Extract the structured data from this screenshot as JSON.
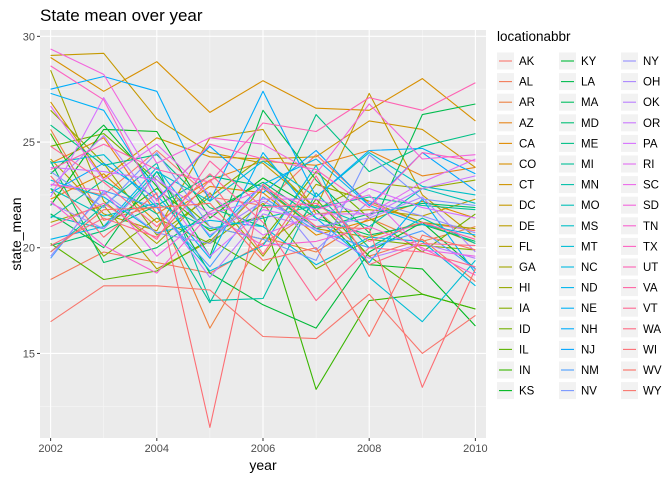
{
  "chart_data": {
    "type": "line",
    "title": "State mean over year",
    "xlabel": "year",
    "ylabel": "state_mean",
    "xlim": [
      2001.8,
      2010.2
    ],
    "ylim": [
      11.0,
      30.3
    ],
    "x_ticks": [
      2002,
      2004,
      2006,
      2008,
      2010
    ],
    "y_ticks": [
      15,
      20,
      25,
      30
    ],
    "grid": true,
    "legend_title": "locationabbr",
    "legend_position": "right",
    "x": [
      2002,
      2003,
      2004,
      2005,
      2006,
      2007,
      2008,
      2009,
      2010
    ],
    "series": [
      {
        "name": "AK",
        "color": "#F8766D",
        "values": [
          23.0,
          22.5,
          24.6,
          22.4,
          22.0,
          24.4,
          22.1,
          21.2,
          20.8
        ]
      },
      {
        "name": "AL",
        "color": "#F37B59",
        "values": [
          18.5,
          19.8,
          19.3,
          18.8,
          20.2,
          21.8,
          19.6,
          20.4,
          18.4
        ]
      },
      {
        "name": "AR",
        "color": "#ED8141",
        "values": [
          25.6,
          21.3,
          22.0,
          16.2,
          20.5,
          19.8,
          21.4,
          20.3,
          21.0
        ]
      },
      {
        "name": "AZ",
        "color": "#E7861B",
        "values": [
          24.0,
          25.2,
          21.6,
          23.2,
          24.1,
          23.9,
          24.6,
          23.4,
          23.8
        ]
      },
      {
        "name": "CA",
        "color": "#E08B00",
        "values": [
          22.3,
          23.5,
          21.2,
          22.9,
          22.6,
          20.6,
          21.3,
          22.2,
          21.4
        ]
      },
      {
        "name": "CO",
        "color": "#D89000",
        "values": [
          29.0,
          27.4,
          28.8,
          26.4,
          27.9,
          26.6,
          26.5,
          28.0,
          26.0
        ]
      },
      {
        "name": "CT",
        "color": "#CF9400",
        "values": [
          26.9,
          23.3,
          25.2,
          24.3,
          24.2,
          24.3,
          26.0,
          25.6,
          23.8
        ]
      },
      {
        "name": "DC",
        "color": "#C59900",
        "values": [
          29.1,
          29.2,
          26.1,
          24.5,
          24.0,
          21.9,
          27.3,
          22.5,
          20.5
        ]
      },
      {
        "name": "DE",
        "color": "#BB9D00",
        "values": [
          24.2,
          21.6,
          20.8,
          25.2,
          25.6,
          21.6,
          21.8,
          21.5,
          22.3
        ]
      },
      {
        "name": "FL",
        "color": "#AFA100",
        "values": [
          21.2,
          22.0,
          19.0,
          20.3,
          22.8,
          20.9,
          20.5,
          21.2,
          20.9
        ]
      },
      {
        "name": "GA",
        "color": "#A3A500",
        "values": [
          28.4,
          22.2,
          20.2,
          22.6,
          19.6,
          23.0,
          22.2,
          21.2,
          20.2
        ]
      },
      {
        "name": "HI",
        "color": "#95A900",
        "values": [
          26.5,
          24.0,
          20.6,
          22.4,
          24.3,
          21.8,
          23.1,
          22.8,
          23.2
        ]
      },
      {
        "name": "IA",
        "color": "#85AD00",
        "values": [
          22.8,
          19.6,
          21.4,
          20.2,
          22.1,
          19.0,
          20.4,
          20.1,
          19.9
        ]
      },
      {
        "name": "ID",
        "color": "#72B000",
        "values": [
          24.8,
          25.4,
          23.2,
          21.0,
          20.4,
          23.6,
          21.4,
          19.8,
          21.6
        ]
      },
      {
        "name": "IL",
        "color": "#5BB300",
        "values": [
          20.2,
          18.5,
          18.9,
          20.4,
          18.9,
          22.3,
          19.6,
          17.8,
          17.1
        ]
      },
      {
        "name": "IN",
        "color": "#39B600",
        "values": [
          25.4,
          21.0,
          22.8,
          20.8,
          21.5,
          13.3,
          17.5,
          17.8,
          17.1
        ]
      },
      {
        "name": "KS",
        "color": "#00B81F",
        "values": [
          22.0,
          25.6,
          25.5,
          21.4,
          23.3,
          21.8,
          19.2,
          19.0,
          16.3
        ]
      },
      {
        "name": "KY",
        "color": "#00BA38",
        "values": [
          23.5,
          25.8,
          22.9,
          18.8,
          17.3,
          16.2,
          19.8,
          21.2,
          19.0
        ]
      },
      {
        "name": "LA",
        "color": "#00BC4D",
        "values": [
          21.6,
          20.0,
          23.6,
          19.6,
          26.5,
          23.2,
          20.7,
          26.3,
          26.8
        ]
      },
      {
        "name": "MA",
        "color": "#00BE61",
        "values": [
          24.1,
          19.3,
          20.0,
          21.7,
          23.1,
          21.4,
          20.6,
          21.1,
          20.3
        ]
      },
      {
        "name": "MD",
        "color": "#00BF74",
        "values": [
          20.1,
          20.8,
          22.0,
          23.4,
          22.9,
          20.9,
          21.6,
          22.1,
          21.9
        ]
      },
      {
        "name": "ME",
        "color": "#00C086",
        "values": [
          25.8,
          23.9,
          24.4,
          21.9,
          21.0,
          26.3,
          23.6,
          24.8,
          25.4
        ]
      },
      {
        "name": "MI",
        "color": "#00C097",
        "values": [
          21.4,
          23.2,
          21.6,
          17.4,
          22.0,
          21.9,
          22.4,
          22.0,
          21.8
        ]
      },
      {
        "name": "MN",
        "color": "#00C0A8",
        "values": [
          19.8,
          22.0,
          24.0,
          17.5,
          17.6,
          22.6,
          20.0,
          21.4,
          20.2
        ]
      },
      {
        "name": "MO",
        "color": "#00C0B8",
        "values": [
          22.8,
          21.5,
          22.1,
          20.9,
          21.4,
          22.0,
          21.0,
          22.8,
          22.1
        ]
      },
      {
        "name": "MS",
        "color": "#00BFC7",
        "values": [
          21.5,
          20.9,
          23.6,
          22.2,
          24.1,
          22.4,
          24.5,
          22.9,
          22.5
        ]
      },
      {
        "name": "MT",
        "color": "#00BDD5",
        "values": [
          24.0,
          24.4,
          21.9,
          18.9,
          20.1,
          23.9,
          18.6,
          16.5,
          19.4
        ]
      },
      {
        "name": "NC",
        "color": "#00BAE2",
        "values": [
          23.2,
          22.4,
          20.7,
          21.3,
          21.0,
          19.2,
          20.5,
          20.3,
          18.2
        ]
      },
      {
        "name": "ND",
        "color": "#00B6EE",
        "values": [
          20.4,
          21.0,
          23.8,
          20.5,
          23.0,
          24.2,
          22.0,
          21.1,
          20.6
        ]
      },
      {
        "name": "NE",
        "color": "#00B2F8",
        "values": [
          27.3,
          26.5,
          22.5,
          19.5,
          24.5,
          21.4,
          19.3,
          22.3,
          18.8
        ]
      },
      {
        "name": "NH",
        "color": "#00ACFC",
        "values": [
          27.5,
          28.1,
          27.4,
          22.2,
          27.4,
          22.4,
          24.6,
          24.7,
          23.5
        ]
      },
      {
        "name": "NJ",
        "color": "#00A5FF",
        "values": [
          22.6,
          24.0,
          22.3,
          24.8,
          22.6,
          24.6,
          22.0,
          24.5,
          22.7
        ]
      },
      {
        "name": "NM",
        "color": "#4C9EFF",
        "values": [
          19.5,
          22.7,
          21.9,
          19.1,
          22.4,
          20.8,
          20.0,
          20.8,
          19.0
        ]
      },
      {
        "name": "NV",
        "color": "#7997FF",
        "values": [
          23.6,
          21.9,
          24.5,
          21.0,
          20.4,
          19.4,
          24.4,
          22.3,
          22.0
        ]
      },
      {
        "name": "NY",
        "color": "#948EFF",
        "values": [
          19.6,
          22.6,
          20.7,
          20.2,
          23.0,
          19.9,
          22.2,
          21.5,
          20.7
        ]
      },
      {
        "name": "OH",
        "color": "#AA86FF",
        "values": [
          22.1,
          20.9,
          23.4,
          20.6,
          22.2,
          21.0,
          21.4,
          22.4,
          19.8
        ]
      },
      {
        "name": "OK",
        "color": "#BB7EFF",
        "values": [
          22.9,
          25.3,
          22.0,
          18.6,
          21.6,
          20.9,
          19.5,
          20.2,
          19.5
        ]
      },
      {
        "name": "OR",
        "color": "#CA77FF",
        "values": [
          23.8,
          23.6,
          23.2,
          21.6,
          22.3,
          22.3,
          21.5,
          22.8,
          23.4
        ]
      },
      {
        "name": "PA",
        "color": "#D771FF",
        "values": [
          22.4,
          27.1,
          23.0,
          19.6,
          21.8,
          21.3,
          22.8,
          21.9,
          21.4
        ]
      },
      {
        "name": "RI",
        "color": "#E26DF3",
        "values": [
          26.7,
          23.2,
          24.9,
          22.5,
          20.6,
          21.6,
          21.6,
          23.1,
          24.2
        ]
      },
      {
        "name": "SC",
        "color": "#EB69E9",
        "values": [
          23.0,
          22.7,
          19.6,
          21.7,
          22.8,
          21.8,
          22.5,
          19.9,
          19.6
        ]
      },
      {
        "name": "SD",
        "color": "#F365DD",
        "values": [
          29.4,
          28.2,
          24.0,
          25.2,
          24.9,
          23.5,
          26.8,
          24.2,
          24.4
        ]
      },
      {
        "name": "TN",
        "color": "#F863D0",
        "values": [
          22.2,
          20.1,
          18.8,
          21.6,
          20.1,
          20.3,
          21.0,
          20.0,
          18.7
        ]
      },
      {
        "name": "TX",
        "color": "#FC62C2",
        "values": [
          28.6,
          27.0,
          22.2,
          24.9,
          24.2,
          23.7,
          21.9,
          24.5,
          24.1
        ]
      },
      {
        "name": "UT",
        "color": "#FE62B3",
        "values": [
          23.7,
          24.9,
          23.7,
          23.1,
          25.9,
          25.5,
          27.1,
          26.5,
          27.8
        ]
      },
      {
        "name": "VA",
        "color": "#FF64A3",
        "values": [
          21.0,
          22.1,
          20.4,
          24.1,
          21.9,
          22.1,
          20.3,
          21.2,
          20.4
        ]
      },
      {
        "name": "VT",
        "color": "#FF6793",
        "values": [
          24.8,
          23.1,
          21.0,
          23.5,
          21.2,
          17.5,
          20.0,
          19.8,
          19.1
        ]
      },
      {
        "name": "WA",
        "color": "#FF6A83",
        "values": [
          20.1,
          21.4,
          20.5,
          23.2,
          19.7,
          23.4,
          19.2,
          20.2,
          20.1
        ]
      },
      {
        "name": "WI",
        "color": "#FD6D73",
        "values": [
          23.4,
          20.5,
          22.6,
          11.5,
          23.0,
          21.0,
          20.9,
          13.4,
          19.0
        ]
      },
      {
        "name": "WV",
        "color": "#FB7064",
        "values": [
          19.8,
          21.8,
          21.9,
          22.1,
          19.4,
          20.0,
          15.8,
          20.6,
          19.9
        ]
      },
      {
        "name": "WY",
        "color": "#F8766D",
        "values": [
          16.5,
          18.2,
          18.2,
          18.0,
          15.8,
          15.7,
          17.8,
          15.0,
          16.8
        ]
      }
    ]
  }
}
